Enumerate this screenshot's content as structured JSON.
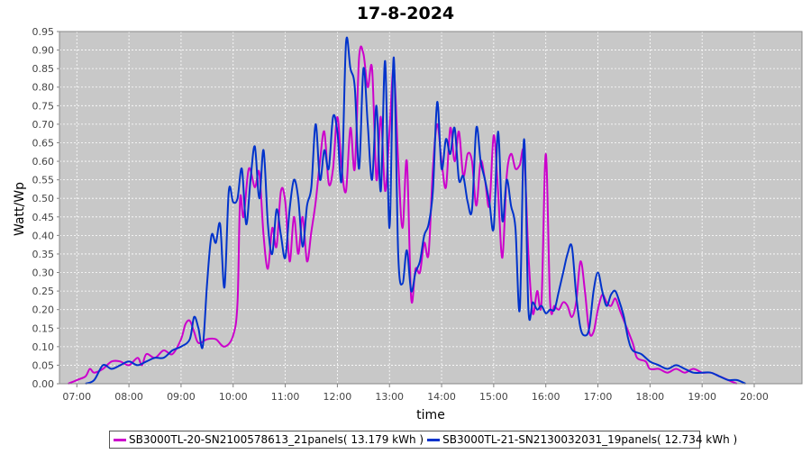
{
  "chart_data": {
    "type": "line",
    "title": "17-8-2024",
    "xlabel": "time",
    "ylabel": "Watt/Wp",
    "xlim": [
      "06:40",
      "20:55"
    ],
    "ylim": [
      0,
      0.95
    ],
    "x_ticks": [
      "07:00",
      "08:00",
      "09:00",
      "10:00",
      "11:00",
      "12:00",
      "13:00",
      "14:00",
      "15:00",
      "16:00",
      "17:00",
      "18:00",
      "19:00",
      "20:00"
    ],
    "y_ticks": [
      "0.00",
      "0.05",
      "0.10",
      "0.15",
      "0.20",
      "0.25",
      "0.30",
      "0.35",
      "0.40",
      "0.45",
      "0.50",
      "0.55",
      "0.60",
      "0.65",
      "0.70",
      "0.75",
      "0.80",
      "0.85",
      "0.90",
      "0.95"
    ],
    "grid": true,
    "plot_background": "#c8c8c8",
    "legend_position": "bottom",
    "series": [
      {
        "name": "SB3000TL-20-SN2100578613_21panels( 13.179 kWh )",
        "color": "#cc00cc",
        "points": [
          [
            "06:50",
            0.0
          ],
          [
            "07:00",
            0.01
          ],
          [
            "07:10",
            0.02
          ],
          [
            "07:15",
            0.04
          ],
          [
            "07:20",
            0.03
          ],
          [
            "07:30",
            0.04
          ],
          [
            "07:40",
            0.06
          ],
          [
            "07:50",
            0.06
          ],
          [
            "08:00",
            0.05
          ],
          [
            "08:10",
            0.07
          ],
          [
            "08:15",
            0.05
          ],
          [
            "08:20",
            0.08
          ],
          [
            "08:30",
            0.07
          ],
          [
            "08:40",
            0.09
          ],
          [
            "08:50",
            0.08
          ],
          [
            "09:00",
            0.12
          ],
          [
            "09:05",
            0.16
          ],
          [
            "09:10",
            0.17
          ],
          [
            "09:15",
            0.14
          ],
          [
            "09:20",
            0.11
          ],
          [
            "09:30",
            0.12
          ],
          [
            "09:40",
            0.12
          ],
          [
            "09:50",
            0.1
          ],
          [
            "10:00",
            0.13
          ],
          [
            "10:05",
            0.22
          ],
          [
            "10:08",
            0.5
          ],
          [
            "10:12",
            0.45
          ],
          [
            "10:18",
            0.58
          ],
          [
            "10:25",
            0.53
          ],
          [
            "10:30",
            0.57
          ],
          [
            "10:35",
            0.4
          ],
          [
            "10:40",
            0.31
          ],
          [
            "10:45",
            0.42
          ],
          [
            "10:50",
            0.37
          ],
          [
            "10:55",
            0.52
          ],
          [
            "11:00",
            0.49
          ],
          [
            "11:05",
            0.33
          ],
          [
            "11:10",
            0.45
          ],
          [
            "11:15",
            0.35
          ],
          [
            "11:20",
            0.45
          ],
          [
            "11:25",
            0.33
          ],
          [
            "11:30",
            0.41
          ],
          [
            "11:35",
            0.49
          ],
          [
            "11:40",
            0.6
          ],
          [
            "11:45",
            0.68
          ],
          [
            "11:50",
            0.54
          ],
          [
            "11:55",
            0.58
          ],
          [
            "12:00",
            0.72
          ],
          [
            "12:05",
            0.58
          ],
          [
            "12:10",
            0.52
          ],
          [
            "12:15",
            0.69
          ],
          [
            "12:20",
            0.58
          ],
          [
            "12:25",
            0.88
          ],
          [
            "12:30",
            0.89
          ],
          [
            "12:35",
            0.8
          ],
          [
            "12:40",
            0.85
          ],
          [
            "12:45",
            0.55
          ],
          [
            "12:50",
            0.72
          ],
          [
            "12:55",
            0.52
          ],
          [
            "13:00",
            0.68
          ],
          [
            "13:05",
            0.85
          ],
          [
            "13:10",
            0.6
          ],
          [
            "13:15",
            0.42
          ],
          [
            "13:20",
            0.6
          ],
          [
            "13:25",
            0.23
          ],
          [
            "13:30",
            0.31
          ],
          [
            "13:35",
            0.3
          ],
          [
            "13:40",
            0.38
          ],
          [
            "13:45",
            0.35
          ],
          [
            "13:50",
            0.58
          ],
          [
            "13:55",
            0.7
          ],
          [
            "14:00",
            0.6
          ],
          [
            "14:05",
            0.53
          ],
          [
            "14:10",
            0.69
          ],
          [
            "14:15",
            0.6
          ],
          [
            "14:20",
            0.68
          ],
          [
            "14:25",
            0.56
          ],
          [
            "14:30",
            0.62
          ],
          [
            "14:35",
            0.6
          ],
          [
            "14:40",
            0.48
          ],
          [
            "14:45",
            0.6
          ],
          [
            "14:50",
            0.55
          ],
          [
            "14:55",
            0.48
          ],
          [
            "15:00",
            0.67
          ],
          [
            "15:05",
            0.52
          ],
          [
            "15:10",
            0.34
          ],
          [
            "15:15",
            0.56
          ],
          [
            "15:20",
            0.62
          ],
          [
            "15:25",
            0.58
          ],
          [
            "15:30",
            0.59
          ],
          [
            "15:35",
            0.62
          ],
          [
            "15:40",
            0.35
          ],
          [
            "15:45",
            0.19
          ],
          [
            "15:50",
            0.25
          ],
          [
            "15:55",
            0.22
          ],
          [
            "16:00",
            0.62
          ],
          [
            "16:05",
            0.22
          ],
          [
            "16:10",
            0.21
          ],
          [
            "16:15",
            0.2
          ],
          [
            "16:20",
            0.22
          ],
          [
            "16:25",
            0.21
          ],
          [
            "16:30",
            0.18
          ],
          [
            "16:35",
            0.22
          ],
          [
            "16:40",
            0.33
          ],
          [
            "16:45",
            0.25
          ],
          [
            "16:50",
            0.14
          ],
          [
            "16:55",
            0.14
          ],
          [
            "17:00",
            0.2
          ],
          [
            "17:05",
            0.24
          ],
          [
            "17:10",
            0.22
          ],
          [
            "17:15",
            0.21
          ],
          [
            "17:20",
            0.23
          ],
          [
            "17:25",
            0.2
          ],
          [
            "17:30",
            0.17
          ],
          [
            "17:40",
            0.11
          ],
          [
            "17:45",
            0.07
          ],
          [
            "17:55",
            0.06
          ],
          [
            "18:00",
            0.04
          ],
          [
            "18:10",
            0.04
          ],
          [
            "18:20",
            0.03
          ],
          [
            "18:30",
            0.04
          ],
          [
            "18:40",
            0.03
          ],
          [
            "18:50",
            0.04
          ],
          [
            "19:00",
            0.03
          ],
          [
            "19:10",
            0.03
          ],
          [
            "19:20",
            0.02
          ],
          [
            "19:30",
            0.01
          ],
          [
            "19:40",
            0.0
          ]
        ]
      },
      {
        "name": "SB3000TL-21-SN2130032031_19panels( 12.734 kWh )",
        "color": "#0033cc",
        "points": [
          [
            "07:10",
            0.0
          ],
          [
            "07:20",
            0.01
          ],
          [
            "07:30",
            0.05
          ],
          [
            "07:40",
            0.04
          ],
          [
            "07:50",
            0.05
          ],
          [
            "08:00",
            0.06
          ],
          [
            "08:10",
            0.05
          ],
          [
            "08:20",
            0.06
          ],
          [
            "08:30",
            0.07
          ],
          [
            "08:40",
            0.07
          ],
          [
            "08:50",
            0.09
          ],
          [
            "09:00",
            0.1
          ],
          [
            "09:10",
            0.12
          ],
          [
            "09:15",
            0.18
          ],
          [
            "09:20",
            0.15
          ],
          [
            "09:25",
            0.1
          ],
          [
            "09:30",
            0.27
          ],
          [
            "09:35",
            0.4
          ],
          [
            "09:40",
            0.38
          ],
          [
            "09:45",
            0.43
          ],
          [
            "09:50",
            0.26
          ],
          [
            "09:55",
            0.52
          ],
          [
            "10:00",
            0.49
          ],
          [
            "10:05",
            0.5
          ],
          [
            "10:10",
            0.58
          ],
          [
            "10:15",
            0.43
          ],
          [
            "10:20",
            0.55
          ],
          [
            "10:25",
            0.64
          ],
          [
            "10:30",
            0.5
          ],
          [
            "10:35",
            0.63
          ],
          [
            "10:40",
            0.43
          ],
          [
            "10:45",
            0.35
          ],
          [
            "10:50",
            0.47
          ],
          [
            "10:55",
            0.4
          ],
          [
            "11:00",
            0.34
          ],
          [
            "11:05",
            0.47
          ],
          [
            "11:10",
            0.55
          ],
          [
            "11:15",
            0.5
          ],
          [
            "11:20",
            0.37
          ],
          [
            "11:25",
            0.48
          ],
          [
            "11:30",
            0.53
          ],
          [
            "11:35",
            0.7
          ],
          [
            "11:40",
            0.55
          ],
          [
            "11:45",
            0.63
          ],
          [
            "11:50",
            0.58
          ],
          [
            "11:55",
            0.72
          ],
          [
            "12:00",
            0.68
          ],
          [
            "12:05",
            0.55
          ],
          [
            "12:10",
            0.92
          ],
          [
            "12:15",
            0.85
          ],
          [
            "12:20",
            0.8
          ],
          [
            "12:25",
            0.58
          ],
          [
            "12:30",
            0.85
          ],
          [
            "12:35",
            0.7
          ],
          [
            "12:40",
            0.55
          ],
          [
            "12:45",
            0.75
          ],
          [
            "12:50",
            0.52
          ],
          [
            "12:55",
            0.87
          ],
          [
            "13:00",
            0.42
          ],
          [
            "13:05",
            0.88
          ],
          [
            "13:10",
            0.35
          ],
          [
            "13:15",
            0.27
          ],
          [
            "13:20",
            0.36
          ],
          [
            "13:25",
            0.25
          ],
          [
            "13:30",
            0.3
          ],
          [
            "13:35",
            0.33
          ],
          [
            "13:40",
            0.4
          ],
          [
            "13:45",
            0.43
          ],
          [
            "13:50",
            0.52
          ],
          [
            "13:55",
            0.76
          ],
          [
            "14:00",
            0.58
          ],
          [
            "14:05",
            0.66
          ],
          [
            "14:10",
            0.62
          ],
          [
            "14:15",
            0.69
          ],
          [
            "14:20",
            0.55
          ],
          [
            "14:25",
            0.56
          ],
          [
            "14:30",
            0.49
          ],
          [
            "14:35",
            0.47
          ],
          [
            "14:40",
            0.69
          ],
          [
            "14:45",
            0.6
          ],
          [
            "14:50",
            0.55
          ],
          [
            "14:55",
            0.49
          ],
          [
            "15:00",
            0.42
          ],
          [
            "15:05",
            0.68
          ],
          [
            "15:10",
            0.44
          ],
          [
            "15:15",
            0.55
          ],
          [
            "15:20",
            0.48
          ],
          [
            "15:25",
            0.42
          ],
          [
            "15:30",
            0.2
          ],
          [
            "15:35",
            0.66
          ],
          [
            "15:40",
            0.2
          ],
          [
            "15:45",
            0.22
          ],
          [
            "15:50",
            0.2
          ],
          [
            "15:55",
            0.21
          ],
          [
            "16:00",
            0.19
          ],
          [
            "16:05",
            0.2
          ],
          [
            "16:10",
            0.2
          ],
          [
            "16:15",
            0.25
          ],
          [
            "16:20",
            0.3
          ],
          [
            "16:25",
            0.35
          ],
          [
            "16:30",
            0.37
          ],
          [
            "16:35",
            0.24
          ],
          [
            "16:40",
            0.15
          ],
          [
            "16:45",
            0.13
          ],
          [
            "16:50",
            0.15
          ],
          [
            "16:55",
            0.25
          ],
          [
            "17:00",
            0.3
          ],
          [
            "17:05",
            0.25
          ],
          [
            "17:10",
            0.21
          ],
          [
            "17:15",
            0.24
          ],
          [
            "17:20",
            0.25
          ],
          [
            "17:25",
            0.22
          ],
          [
            "17:30",
            0.18
          ],
          [
            "17:35",
            0.12
          ],
          [
            "17:40",
            0.09
          ],
          [
            "17:50",
            0.08
          ],
          [
            "18:00",
            0.06
          ],
          [
            "18:10",
            0.05
          ],
          [
            "18:20",
            0.04
          ],
          [
            "18:30",
            0.05
          ],
          [
            "18:40",
            0.04
          ],
          [
            "18:50",
            0.03
          ],
          [
            "19:00",
            0.03
          ],
          [
            "19:10",
            0.03
          ],
          [
            "19:20",
            0.02
          ],
          [
            "19:30",
            0.01
          ],
          [
            "19:40",
            0.01
          ],
          [
            "19:50",
            0.0
          ]
        ]
      }
    ]
  }
}
